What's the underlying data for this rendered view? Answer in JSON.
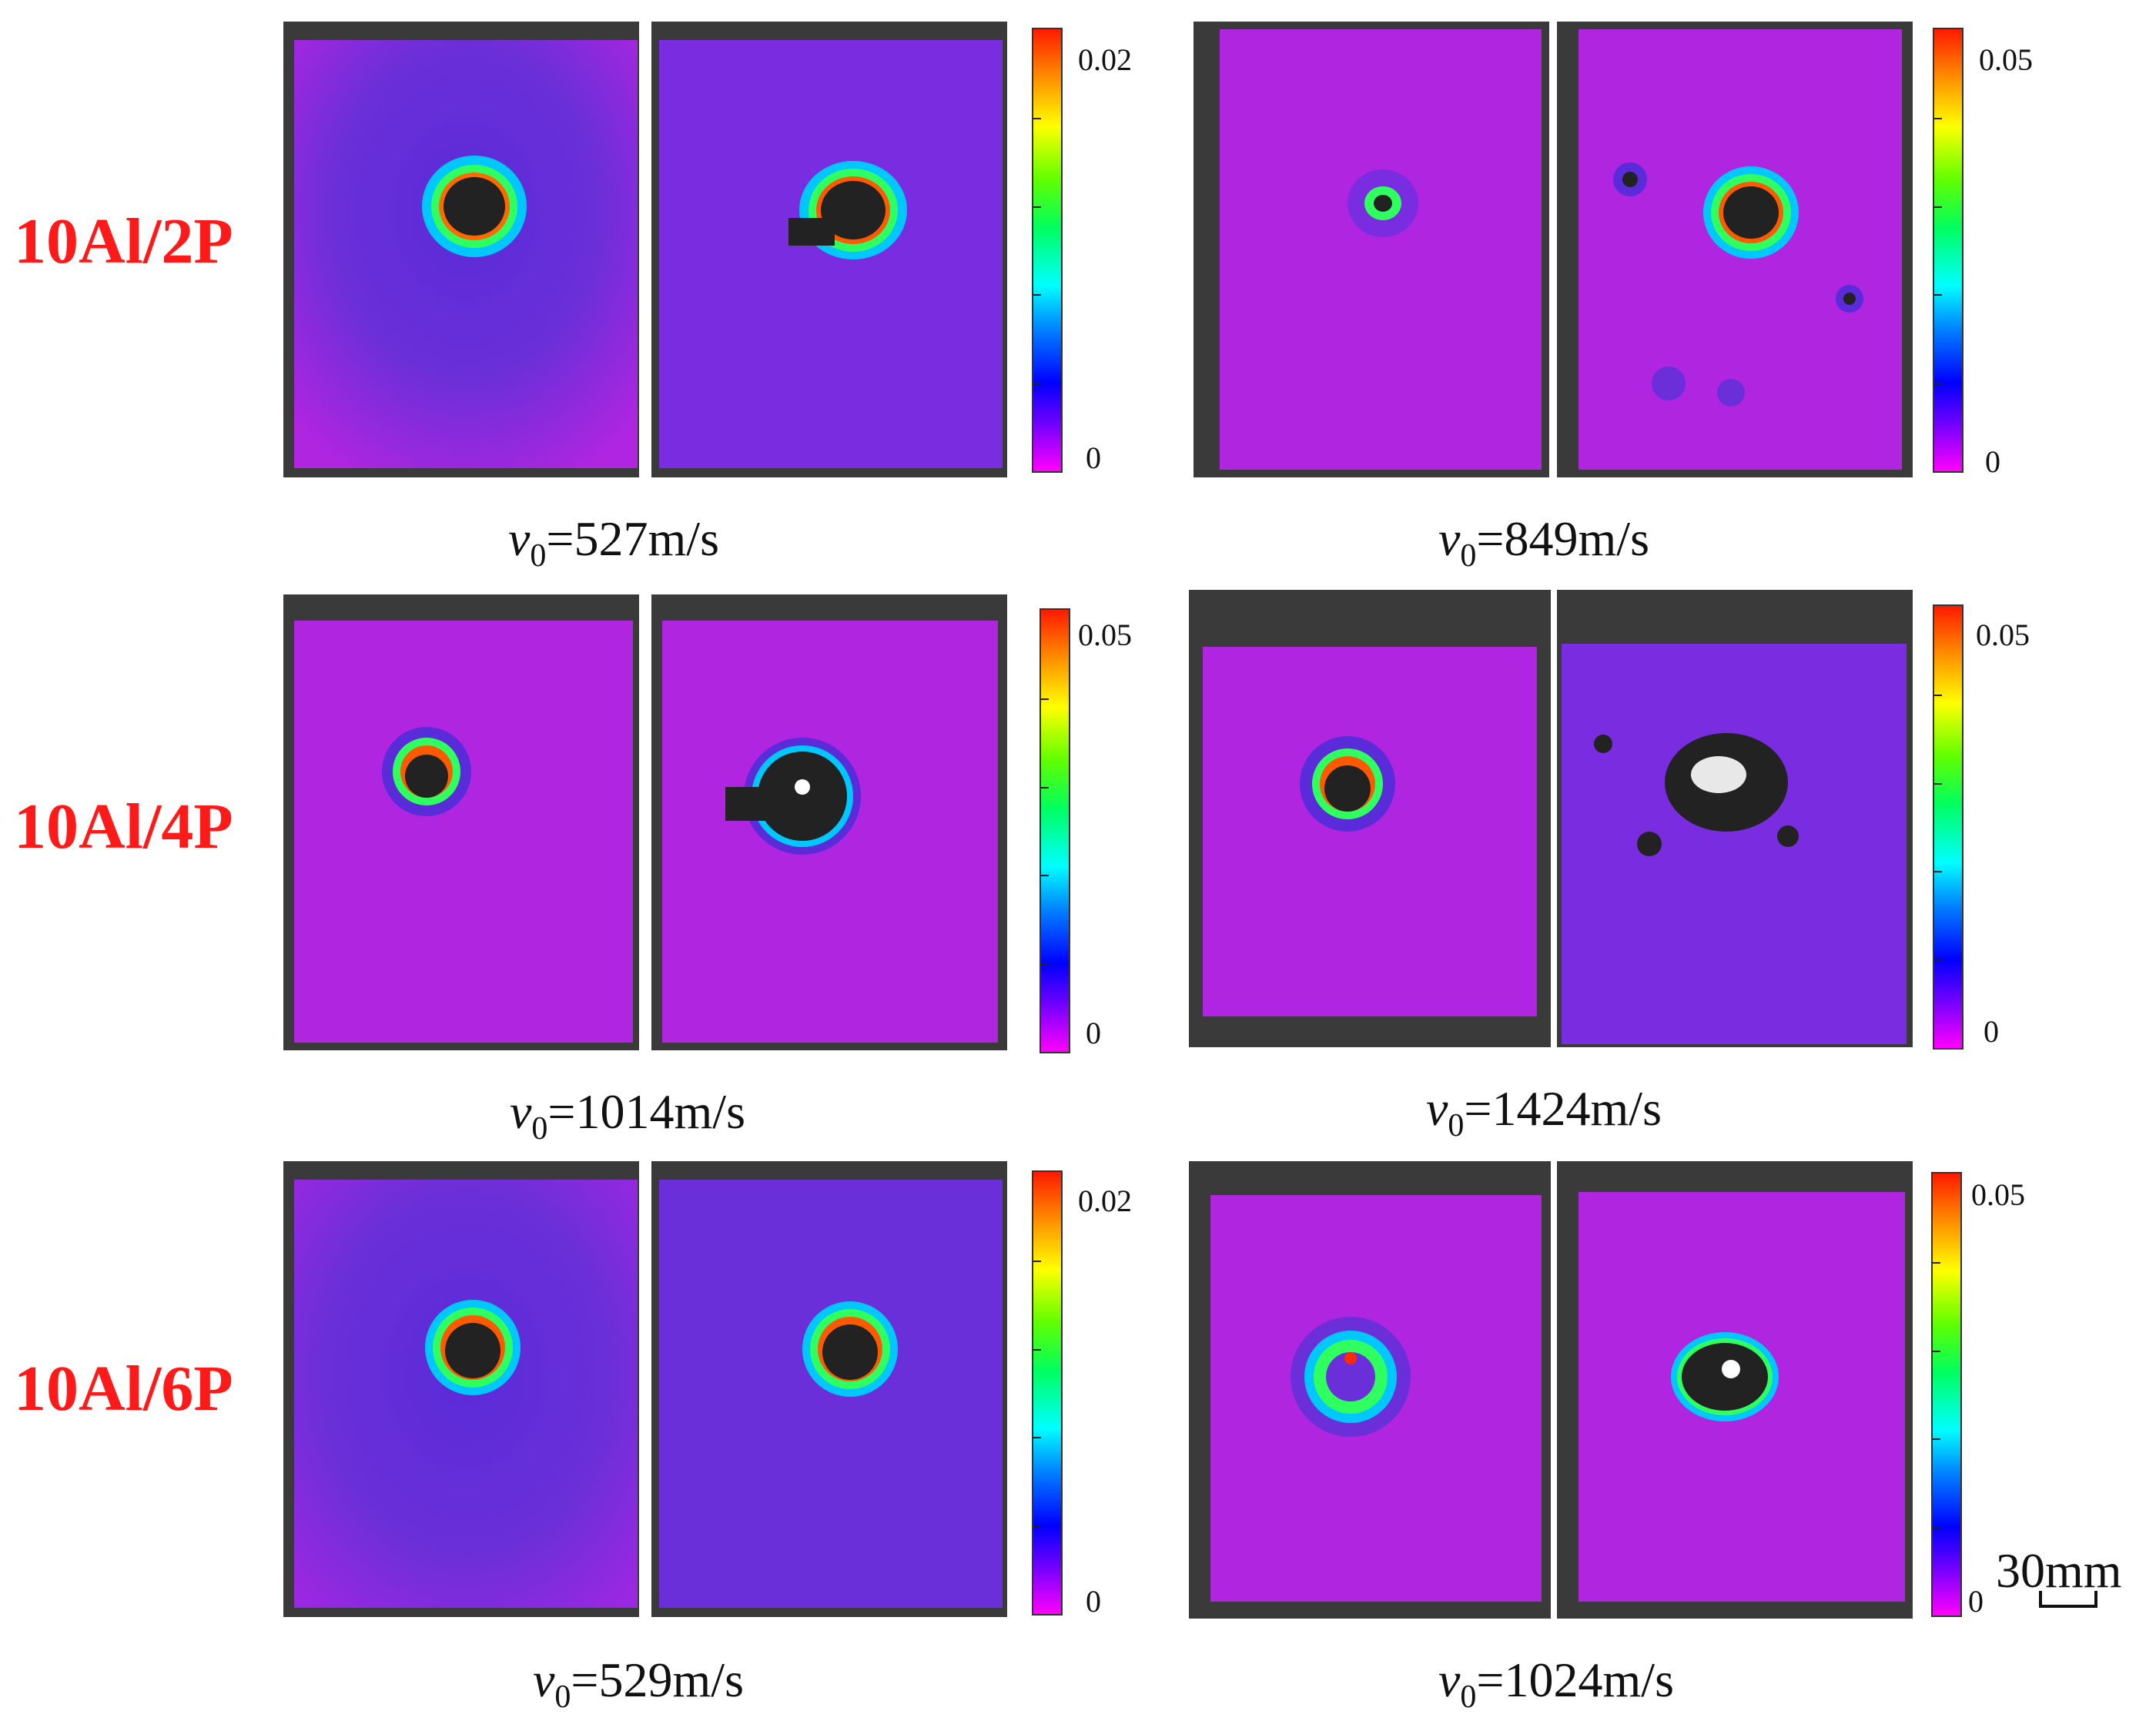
{
  "rows": [
    {
      "label": "10Al/2P"
    },
    {
      "label": "10Al/4P"
    },
    {
      "label": "10Al/6P"
    }
  ],
  "groups": [
    {
      "velocity_symbol": "v",
      "velocity_sub": "0",
      "velocity_value": "=527m/s",
      "colorbar_max": "0.02",
      "colorbar_min": "0"
    },
    {
      "velocity_symbol": "v",
      "velocity_sub": "0",
      "velocity_value": "=849m/s",
      "colorbar_max": "0.05",
      "colorbar_min": "0"
    },
    {
      "velocity_symbol": "v",
      "velocity_sub": "0",
      "velocity_value": "=1014m/s",
      "colorbar_max": "0.05",
      "colorbar_min": "0"
    },
    {
      "velocity_symbol": "v",
      "velocity_sub": "0",
      "velocity_value": "=1424m/s",
      "colorbar_max": "0.05",
      "colorbar_min": "0"
    },
    {
      "velocity_symbol": "v",
      "velocity_sub": "0",
      "velocity_value": "=529m/s",
      "colorbar_max": "0.02",
      "colorbar_min": "0"
    },
    {
      "velocity_symbol": "v",
      "velocity_sub": "0",
      "velocity_value": "=1024m/s",
      "colorbar_max": "0.05",
      "colorbar_min": "0"
    }
  ],
  "scale_bar": {
    "label": "30mm"
  },
  "colors": {
    "label_red": "#ff1a1a",
    "field_magenta": "#b025e0",
    "field_blue": "#5a2bd8"
  }
}
